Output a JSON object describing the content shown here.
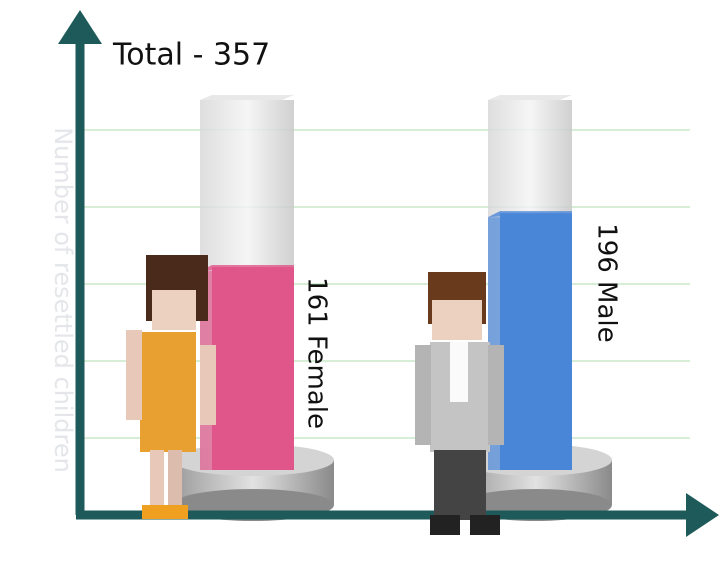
{
  "chart_data": {
    "type": "bar",
    "title": "Total - 357",
    "y_label": "Number of resettled children",
    "values": [
      161,
      196
    ],
    "value_labels": [
      "161 Female",
      "196 Male"
    ],
    "colors": [
      "#e0558a",
      "#4a86d8"
    ],
    "ylim": [
      0,
      300
    ],
    "yticks": [
      50,
      100,
      150,
      200,
      250
    ],
    "grid": true
  }
}
